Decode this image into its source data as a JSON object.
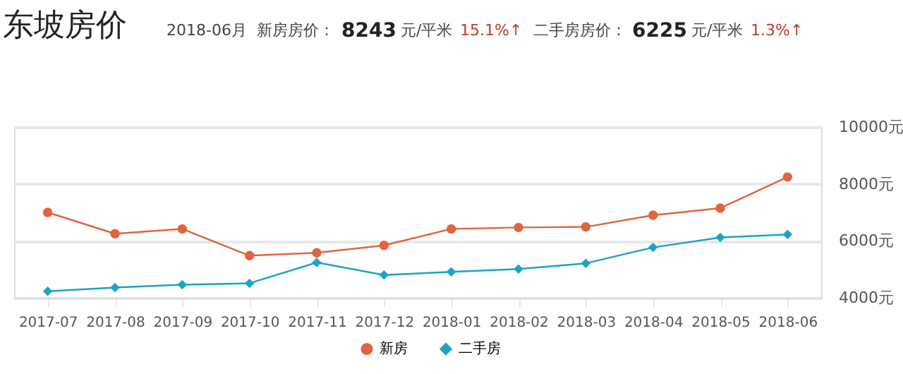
{
  "chart_data": {
    "type": "line",
    "title": "东坡房价",
    "annotations": [
      "2018-06月",
      "新房房价：",
      "8243",
      "元/平米",
      "15.1%↑",
      "二手房房价：",
      "6225",
      "元/平米",
      "1.3%↑"
    ],
    "categories": [
      "2017-07",
      "2017-08",
      "2017-09",
      "2017-10",
      "2017-11",
      "2017-12",
      "2018-01",
      "2018-02",
      "2018-03",
      "2018-04",
      "2018-05",
      "2018-06"
    ],
    "series": [
      {
        "name": "新房",
        "color": "#e0643f",
        "marker": "circle",
        "values": [
          7000,
          6250,
          6420,
          5480,
          5580,
          5840,
          6420,
          6470,
          6490,
          6900,
          7150,
          8243
        ]
      },
      {
        "name": "二手房",
        "color": "#1ba3c6",
        "marker": "diamond",
        "values": [
          4230,
          4360,
          4460,
          4510,
          5240,
          4800,
          4910,
          5010,
          5210,
          5770,
          6120,
          6225
        ]
      }
    ],
    "ylim": [
      4000,
      10000
    ],
    "yticks": [
      {
        "value": 4000,
        "label": "4000元"
      },
      {
        "value": 6000,
        "label": "6000元"
      },
      {
        "value": 8000,
        "label": "8000元"
      },
      {
        "value": 10000,
        "label": "10000元"
      }
    ],
    "grid": "y",
    "legend": "bottom",
    "line_style": "solid"
  }
}
